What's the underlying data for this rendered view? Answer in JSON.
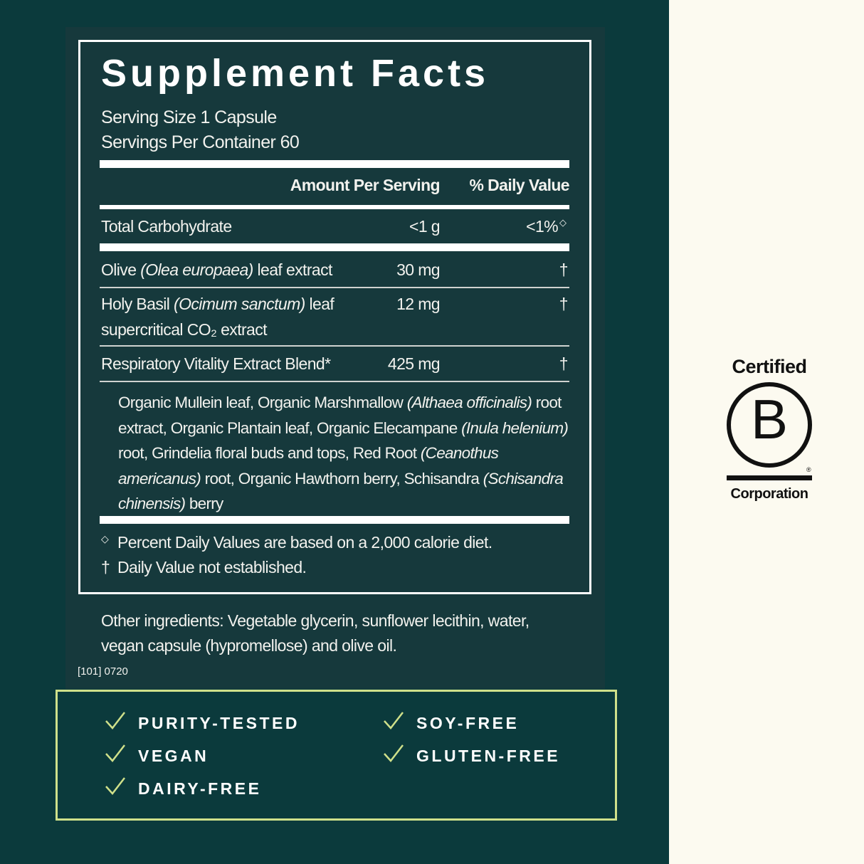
{
  "colors": {
    "background_dark": "#0b3a3c",
    "panel": "#16393c",
    "right_background": "#fcfaf0",
    "badge_accent": "#cfe08a"
  },
  "label": {
    "title": "Supplement Facts",
    "serving_size": "Serving Size 1 Capsule",
    "servings_per_container": "Servings Per Container 60",
    "header_amount": "Amount Per Serving",
    "header_dv": "% Daily Value",
    "rows": [
      {
        "name": "Total Carbohydrate",
        "amount": "<1 g",
        "dv": "<1%",
        "dv_mark": "◇"
      },
      {
        "name_pre": "Olive ",
        "name_italic": "(Olea europaea)",
        "name_post": " leaf extract",
        "amount": "30 mg",
        "dv": "†"
      },
      {
        "name_pre": "Holy Basil ",
        "name_italic": "(Ocimum sanctum)",
        "name_post": " leaf",
        "name_line2": "supercritical CO₂ extract",
        "amount": "12 mg",
        "dv": "†"
      },
      {
        "name": "Respiratory Vitality Extract Blend*",
        "amount": "425 mg",
        "dv": "†"
      }
    ],
    "blend_parts": [
      "Organic Mullein leaf, Organic Marshmallow ",
      "(Althaea officinalis)",
      " root extract, Organic Plantain leaf, Organic Elecampane ",
      "(Inula helenium)",
      " root, Grindelia floral buds and tops, Red Root ",
      "(Ceanothus americanus)",
      " root, Organic Hawthorn berry, Schisandra ",
      "(Schisandra chinensis)",
      " berry"
    ],
    "footnote_1_mark": "◇",
    "footnote_1": "Percent Daily Values are based on a 2,000 calorie diet.",
    "footnote_2_mark": "†",
    "footnote_2": "Daily Value not established.",
    "other_ingredients": "Other ingredients: Vegetable glycerin, sunflower lecithin, water,",
    "other_ingredients_2": "vegan capsule (hypromellose) and olive oil.",
    "code": "[101] 0720"
  },
  "badges": [
    "PURITY-TESTED",
    "VEGAN",
    "DAIRY-FREE",
    "SOY-FREE",
    "GLUTEN-FREE"
  ],
  "bcorp": {
    "top": "Certified",
    "letter": "B",
    "bottom": "Corporation",
    "registered": "®"
  }
}
